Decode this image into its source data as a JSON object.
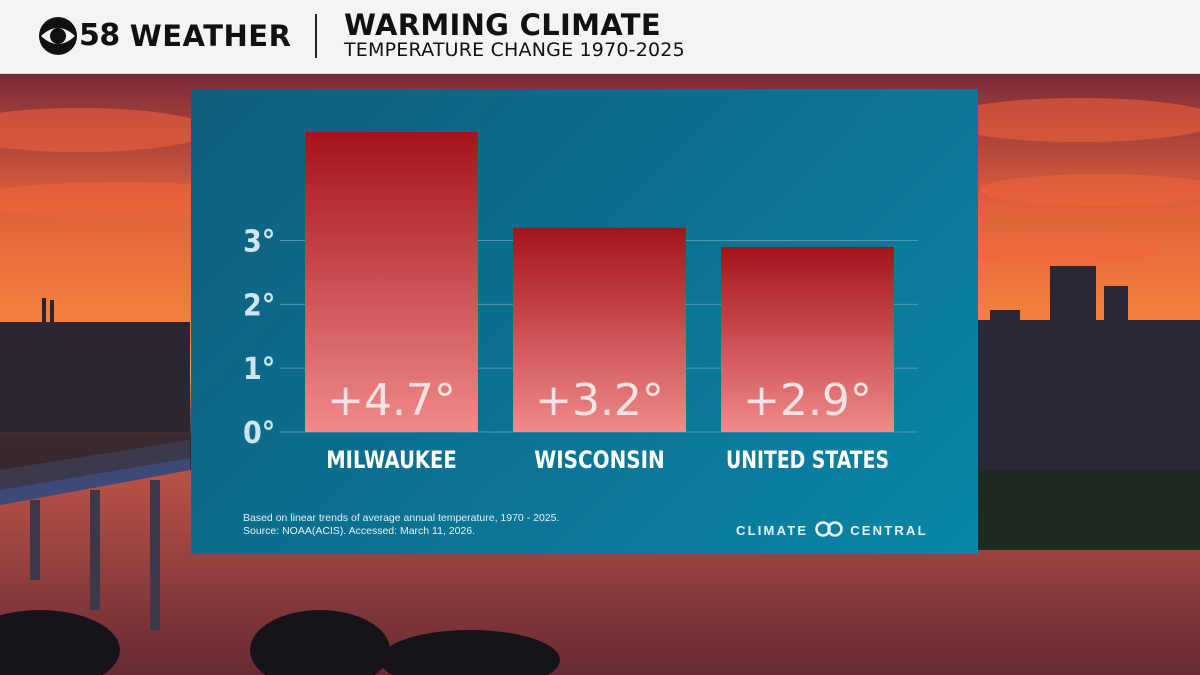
{
  "header": {
    "station_number": "58",
    "station_name": "WEATHER",
    "title": "WARMING CLIMATE",
    "subtitle": "TEMPERATURE CHANGE 1970-2025"
  },
  "colors": {
    "header_bg": "#f4f4f4",
    "panel_bg": "#0c6f8f",
    "bar_top": "#a3141a",
    "bar_bottom": "#f08a8a",
    "bar_label": "#f7e3e3",
    "axis_text": "#cfe6ee",
    "grid": "#5fa3bb"
  },
  "chart_data": {
    "type": "bar",
    "title": "WARMING CLIMATE",
    "subtitle": "TEMPERATURE CHANGE 1970-2025",
    "categories": [
      "MILWAUKEE",
      "WISCONSIN",
      "UNITED STATES"
    ],
    "values": [
      4.7,
      3.2,
      2.9
    ],
    "value_labels": [
      "+4.7°",
      "+3.2°",
      "+2.9°"
    ],
    "y_ticks": [
      0,
      1,
      2,
      3
    ],
    "y_tick_labels": [
      "0°",
      "1°",
      "2°",
      "3°"
    ],
    "ylim": [
      0,
      4.7
    ],
    "grid": true,
    "legend": "none"
  },
  "footer": {
    "note_line1": "Based on linear trends of average annual temperature, 1970 - 2025.",
    "note_line2": "Source: NOAA(ACIS). Accessed: March 11, 2026.",
    "brand_left": "CLIMATE",
    "brand_right": "CENTRAL"
  }
}
